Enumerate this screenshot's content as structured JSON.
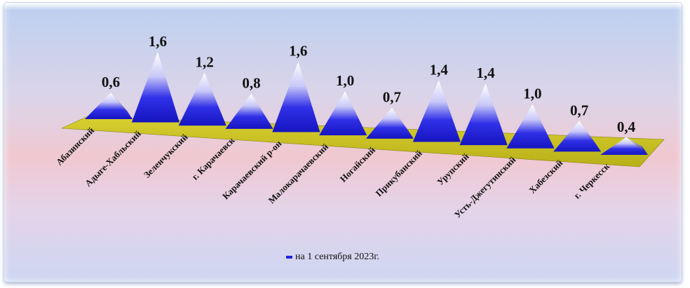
{
  "chart_data": {
    "type": "bar",
    "style": "3d-pyramid",
    "categories": [
      "Абазинский",
      "Адыге-Хабльский",
      "Зеленчукский",
      "г. Карачаевск",
      "Карачаевский р-он",
      "Малокарачаевский",
      "Ногайский",
      "Прикубанский",
      "Урупский",
      "Усть-Джегутинский",
      "Хабезский",
      "г. Черкесск"
    ],
    "series": [
      {
        "name": "на 1 сентября 2023г.",
        "values": [
          0.6,
          1.6,
          1.2,
          0.8,
          1.6,
          1.0,
          0.7,
          1.4,
          1.4,
          1.0,
          0.7,
          0.4
        ],
        "color": "#2020e0"
      }
    ],
    "value_labels": [
      "0,6",
      "1,6",
      "1,2",
      "0,8",
      "1,6",
      "1,0",
      "0,7",
      "1,4",
      "1,4",
      "1,0",
      "0,7",
      "0,4"
    ],
    "colors": {
      "floor": "#c8c020",
      "pyramid_base": "#2222dd",
      "pyramid_top": "#ffffff"
    },
    "legend_position": "bottom",
    "grid": false
  },
  "legend": {
    "label": "на 1 сентября 2023г."
  }
}
